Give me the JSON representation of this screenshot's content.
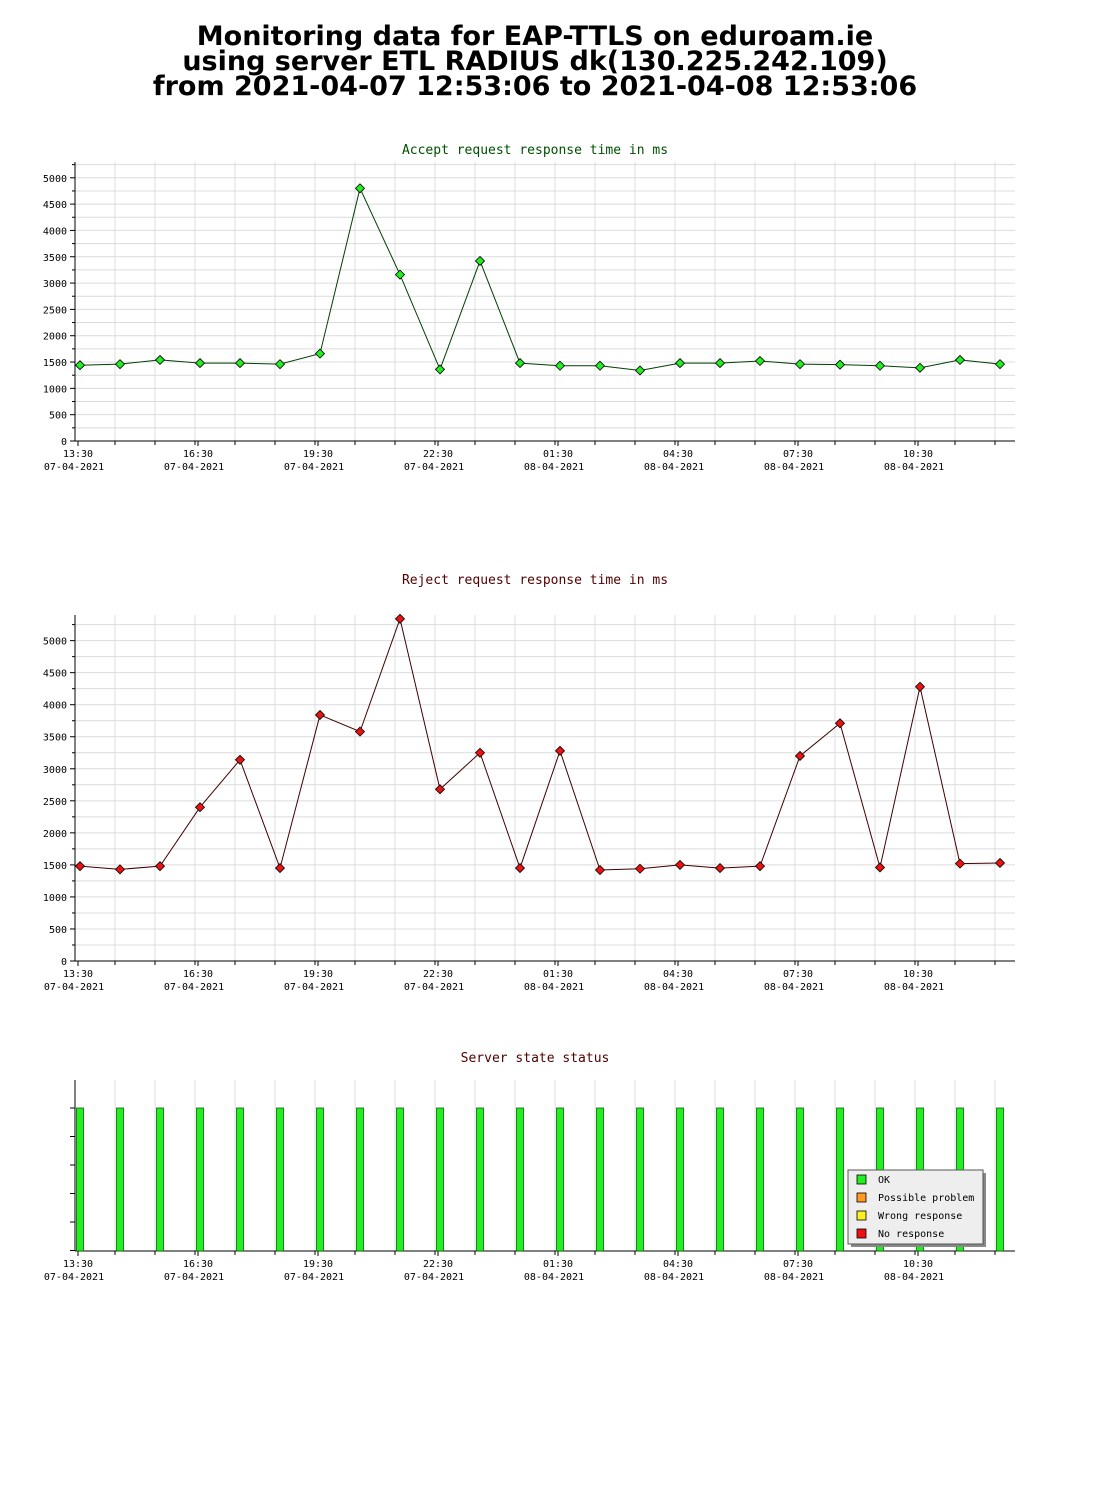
{
  "page": {
    "title_lines": [
      "Monitoring data for EAP-TTLS on eduroam.ie",
      "using server ETL RADIUS dk(130.225.242.109)",
      "from 2021-04-07 12:53:06 to 2021-04-08 12:53:06"
    ]
  },
  "x_ticks": [
    {
      "time": "13:30",
      "date": "07-04-2021"
    },
    {
      "time": "16:30",
      "date": "07-04-2021"
    },
    {
      "time": "19:30",
      "date": "07-04-2021"
    },
    {
      "time": "22:30",
      "date": "07-04-2021"
    },
    {
      "time": "01:30",
      "date": "08-04-2021"
    },
    {
      "time": "04:30",
      "date": "08-04-2021"
    },
    {
      "time": "07:30",
      "date": "08-04-2021"
    },
    {
      "time": "10:30",
      "date": "08-04-2021"
    }
  ],
  "chart_data": [
    {
      "type": "line",
      "title": "Accept request response time in ms",
      "title_color": "#005000",
      "line_color": "#004000",
      "marker_color": "#22ee22",
      "x": [
        "2021-04-07 13:30",
        "2021-04-07 14:30",
        "2021-04-07 15:30",
        "2021-04-07 16:30",
        "2021-04-07 17:30",
        "2021-04-07 18:30",
        "2021-04-07 19:30",
        "2021-04-07 20:30",
        "2021-04-07 21:30",
        "2021-04-07 22:30",
        "2021-04-07 23:30",
        "2021-04-08 00:30",
        "2021-04-08 01:30",
        "2021-04-08 02:30",
        "2021-04-08 03:30",
        "2021-04-08 04:30",
        "2021-04-08 05:30",
        "2021-04-08 06:30",
        "2021-04-08 07:30",
        "2021-04-08 08:30",
        "2021-04-08 09:30",
        "2021-04-08 10:30",
        "2021-04-08 11:30",
        "2021-04-08 12:30"
      ],
      "values": [
        1440,
        1460,
        1540,
        1480,
        1480,
        1460,
        1660,
        4800,
        3160,
        1360,
        3420,
        1480,
        1430,
        1430,
        1340,
        1480,
        1480,
        1520,
        1460,
        1450,
        1430,
        1390,
        1540,
        1460
      ],
      "ylim": [
        0,
        5300
      ],
      "y_ticks": [
        0,
        500,
        1000,
        1500,
        2000,
        2500,
        3000,
        3500,
        4000,
        4500,
        5000
      ],
      "grid": true
    },
    {
      "type": "line",
      "title": "Reject request response time in ms",
      "title_color": "#500000",
      "line_color": "#400000",
      "marker_color": "#ee1111",
      "x": [
        "2021-04-07 13:30",
        "2021-04-07 14:30",
        "2021-04-07 15:30",
        "2021-04-07 16:30",
        "2021-04-07 17:30",
        "2021-04-07 18:30",
        "2021-04-07 19:30",
        "2021-04-07 20:30",
        "2021-04-07 21:30",
        "2021-04-07 22:30",
        "2021-04-07 23:30",
        "2021-04-08 00:30",
        "2021-04-08 01:30",
        "2021-04-08 02:30",
        "2021-04-08 03:30",
        "2021-04-08 04:30",
        "2021-04-08 05:30",
        "2021-04-08 06:30",
        "2021-04-08 07:30",
        "2021-04-08 08:30",
        "2021-04-08 09:30",
        "2021-04-08 10:30",
        "2021-04-08 11:30",
        "2021-04-08 12:30"
      ],
      "values": [
        1480,
        1430,
        1480,
        2400,
        3140,
        1450,
        3840,
        3580,
        5340,
        2680,
        3250,
        1450,
        3280,
        1420,
        1440,
        1500,
        1450,
        1480,
        3200,
        3710,
        1460,
        4280,
        1520,
        1530
      ],
      "ylim": [
        0,
        5400
      ],
      "y_ticks": [
        0,
        500,
        1000,
        1500,
        2000,
        2500,
        3000,
        3500,
        4000,
        4500,
        5000
      ],
      "grid": true
    },
    {
      "type": "bar",
      "title": "Server state status",
      "title_color": "#500000",
      "x": [
        "2021-04-07 13:30",
        "2021-04-07 14:30",
        "2021-04-07 15:30",
        "2021-04-07 16:30",
        "2021-04-07 17:30",
        "2021-04-07 18:30",
        "2021-04-07 19:30",
        "2021-04-07 20:30",
        "2021-04-07 21:30",
        "2021-04-07 22:30",
        "2021-04-07 23:30",
        "2021-04-08 00:30",
        "2021-04-08 01:30",
        "2021-04-08 02:30",
        "2021-04-08 03:30",
        "2021-04-08 04:30",
        "2021-04-08 05:30",
        "2021-04-08 06:30",
        "2021-04-08 07:30",
        "2021-04-08 08:30",
        "2021-04-08 09:30",
        "2021-04-08 10:30",
        "2021-04-08 11:30",
        "2021-04-08 12:30"
      ],
      "states": [
        "OK",
        "OK",
        "OK",
        "OK",
        "OK",
        "OK",
        "OK",
        "OK",
        "OK",
        "OK",
        "OK",
        "OK",
        "OK",
        "OK",
        "OK",
        "OK",
        "OK",
        "OK",
        "OK",
        "OK",
        "OK",
        "OK",
        "OK",
        "OK"
      ],
      "legend": {
        "placement": "bottom-right",
        "items": [
          {
            "label": "OK",
            "color": "#22ee22"
          },
          {
            "label": "Possible problem",
            "color": "#ff9922"
          },
          {
            "label": "Wrong response",
            "color": "#ffee22"
          },
          {
            "label": "No response",
            "color": "#ee1111"
          }
        ]
      },
      "grid": false
    }
  ]
}
